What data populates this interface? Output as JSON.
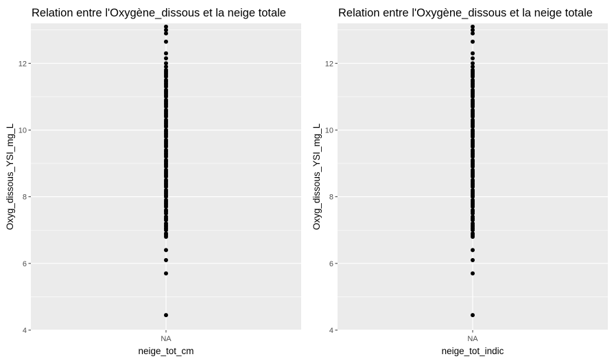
{
  "chart_data": [
    {
      "type": "scatter",
      "title": "Relation entre l'Oxygène_dissous et la neige totale",
      "xlabel": "neige_tot_cm",
      "ylabel": "Oxyg_dissous_YSI_mg_L",
      "categories": [
        "NA"
      ],
      "ylim": [
        4,
        13.2
      ],
      "yticks": [
        4,
        6,
        8,
        10,
        12
      ],
      "grid": true,
      "legend": "none",
      "colors": {
        "panel_bg": "#EBEBEB",
        "grid": "#FFFFFF",
        "point": "#000000"
      },
      "series": [
        {
          "x": "NA",
          "values": [
            4.45,
            5.7,
            6.1,
            6.4,
            6.8,
            6.85,
            6.9,
            7.0,
            7.05,
            7.1,
            7.15,
            7.2,
            7.3,
            7.35,
            7.4,
            7.5,
            7.55,
            7.6,
            7.7,
            7.75,
            7.8,
            7.85,
            7.9,
            8.0,
            8.05,
            8.1,
            8.15,
            8.2,
            8.3,
            8.35,
            8.4,
            8.45,
            8.5,
            8.6,
            8.65,
            8.7,
            8.75,
            8.8,
            8.9,
            8.95,
            9.0,
            9.05,
            9.1,
            9.2,
            9.25,
            9.3,
            9.35,
            9.4,
            9.5,
            9.55,
            9.6,
            9.65,
            9.7,
            9.8,
            9.85,
            9.9,
            9.95,
            10.0,
            10.1,
            10.15,
            10.2,
            10.25,
            10.3,
            10.4,
            10.45,
            10.5,
            10.55,
            10.6,
            10.7,
            10.75,
            10.8,
            10.85,
            10.9,
            11.0,
            11.05,
            11.1,
            11.15,
            11.2,
            11.3,
            11.35,
            11.4,
            11.45,
            11.5,
            11.6,
            11.65,
            11.7,
            11.75,
            11.8,
            11.9,
            12.0,
            12.15,
            12.3,
            12.65,
            12.9,
            13.0,
            13.1
          ]
        }
      ]
    },
    {
      "type": "scatter",
      "title": "Relation entre l'Oxygène_dissous et la neige totale",
      "xlabel": "neige_tot_indic",
      "ylabel": "Oxyg_dissous_YSI_mg_L",
      "categories": [
        "NA"
      ],
      "ylim": [
        4,
        13.2
      ],
      "yticks": [
        4,
        6,
        8,
        10,
        12
      ],
      "grid": true,
      "legend": "none",
      "colors": {
        "panel_bg": "#EBEBEB",
        "grid": "#FFFFFF",
        "point": "#000000"
      },
      "series": [
        {
          "x": "NA",
          "values": [
            4.45,
            5.7,
            6.1,
            6.4,
            6.8,
            6.85,
            6.9,
            7.0,
            7.05,
            7.1,
            7.15,
            7.2,
            7.3,
            7.35,
            7.4,
            7.5,
            7.55,
            7.6,
            7.7,
            7.75,
            7.8,
            7.85,
            7.9,
            8.0,
            8.05,
            8.1,
            8.15,
            8.2,
            8.3,
            8.35,
            8.4,
            8.45,
            8.5,
            8.6,
            8.65,
            8.7,
            8.75,
            8.8,
            8.9,
            8.95,
            9.0,
            9.05,
            9.1,
            9.2,
            9.25,
            9.3,
            9.35,
            9.4,
            9.5,
            9.55,
            9.6,
            9.65,
            9.7,
            9.8,
            9.85,
            9.9,
            9.95,
            10.0,
            10.1,
            10.15,
            10.2,
            10.25,
            10.3,
            10.4,
            10.45,
            10.5,
            10.55,
            10.6,
            10.7,
            10.75,
            10.8,
            10.85,
            10.9,
            11.0,
            11.05,
            11.1,
            11.15,
            11.2,
            11.3,
            11.35,
            11.4,
            11.45,
            11.5,
            11.6,
            11.65,
            11.7,
            11.75,
            11.8,
            11.9,
            12.0,
            12.15,
            12.3,
            12.65,
            12.9,
            13.0,
            13.1
          ]
        }
      ]
    }
  ]
}
